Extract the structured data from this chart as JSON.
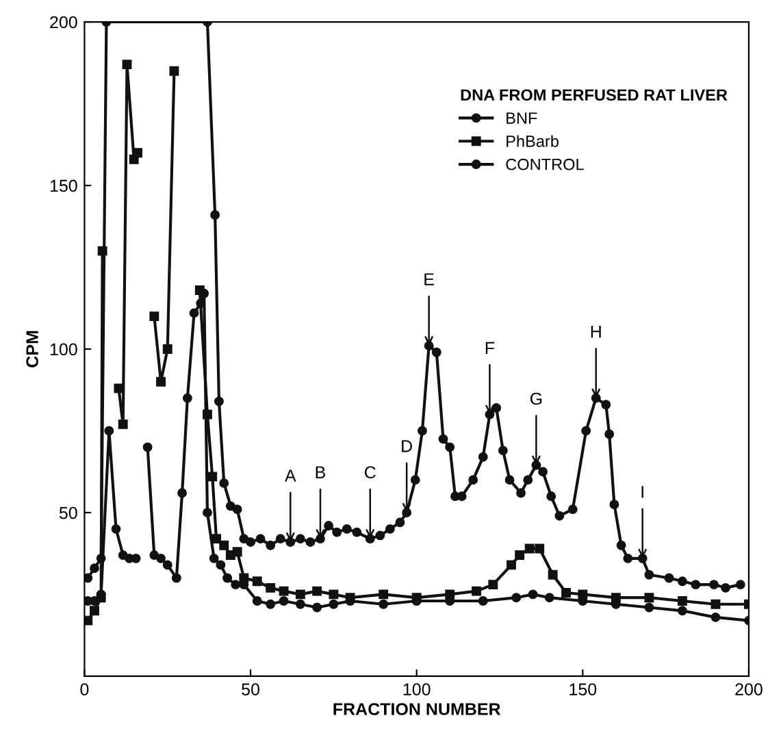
{
  "chart_data": {
    "type": "line",
    "xlabel": "FRACTION NUMBER",
    "ylabel": "CPM",
    "legend_title": "DNA FROM PERFUSED RAT LIVER",
    "legend": "top right",
    "xlim": [
      0,
      200
    ],
    "ylim": [
      0,
      200
    ],
    "xticks": [
      0,
      50,
      100,
      150,
      200
    ],
    "yticks": [
      50,
      100,
      150,
      200
    ],
    "grid": false,
    "line_style": "solid",
    "series": [
      {
        "name": "BNF",
        "color": "#111111",
        "marker": "circle",
        "x": [
          1,
          3,
          5,
          6.6,
          37,
          39.3,
          40.5,
          42,
          44,
          46,
          48,
          50,
          53,
          56,
          59,
          62,
          65,
          68,
          71,
          73.5,
          76,
          79,
          82,
          86,
          89,
          92,
          95,
          97,
          99.6,
          101.7,
          103.7,
          106,
          108,
          110,
          111.6,
          113.6,
          117,
          120,
          122,
          124,
          126,
          128,
          131.4,
          133.5,
          136,
          138,
          140.5,
          143,
          147,
          151,
          154,
          157,
          158,
          159.5,
          161.6,
          163.6,
          168,
          170,
          176,
          180,
          184,
          189.5,
          193,
          197.5
        ],
        "values": [
          30,
          33,
          36,
          200,
          200,
          141,
          84,
          59,
          52,
          51,
          42,
          41,
          42,
          40,
          42,
          41,
          42,
          41,
          42,
          46,
          44,
          45,
          44,
          42,
          43,
          45,
          47,
          50,
          60,
          75,
          101,
          99,
          72.5,
          70,
          55,
          55,
          60,
          67,
          80,
          82,
          69,
          60,
          56,
          60,
          64.5,
          62.5,
          55,
          49,
          51,
          75,
          85,
          83,
          74,
          52.5,
          40,
          36,
          36,
          31,
          30,
          29,
          28,
          28,
          27,
          28
        ]
      },
      {
        "name": "PhBarb",
        "color": "#111111",
        "marker": "square",
        "x": [
          1,
          3,
          5,
          5.4,
          7,
          10.3,
          11.6,
          12.8,
          14.9,
          16,
          17.5,
          21,
          23,
          25,
          27,
          28.5,
          33,
          34.7,
          37,
          38.5,
          39.7,
          42,
          44,
          46,
          48,
          52,
          56,
          60,
          65,
          70,
          75,
          80,
          90,
          100,
          110,
          118,
          123,
          128.5,
          131,
          134,
          137,
          141,
          145,
          150,
          160,
          170,
          180,
          190,
          200
        ],
        "values": [
          17,
          20,
          24,
          130,
          null,
          88,
          77,
          187,
          158,
          160,
          null,
          110,
          90,
          100,
          185,
          null,
          null,
          118,
          80,
          61,
          42,
          40,
          37,
          38,
          30,
          29,
          27,
          26,
          25,
          26,
          25,
          24,
          25,
          24,
          25,
          26,
          28,
          34,
          37,
          39,
          39,
          31,
          25.5,
          25,
          24,
          24,
          23,
          22,
          22
        ]
      },
      {
        "name": "CONTROL",
        "color": "#111111",
        "marker": "circle",
        "x": [
          1,
          3,
          5,
          7.4,
          9.5,
          11.6,
          13.5,
          15.5,
          17,
          19,
          21,
          23,
          25,
          27.7,
          29.4,
          31,
          33,
          35,
          36,
          37,
          39,
          41,
          43,
          45.5,
          48,
          52,
          56,
          60,
          65,
          70,
          75,
          80,
          90,
          100,
          110,
          120,
          130,
          135,
          140,
          150,
          160,
          170,
          180,
          190,
          200
        ],
        "values": [
          23,
          23,
          25,
          75,
          45,
          37,
          36,
          36,
          null,
          70,
          37,
          36,
          34,
          30,
          56,
          85,
          111,
          114,
          117,
          50,
          36,
          34,
          30,
          28,
          28,
          23,
          22,
          23,
          22,
          21,
          22,
          23,
          22,
          23,
          23,
          23,
          24,
          25,
          24,
          23,
          22,
          21,
          20,
          18,
          17
        ]
      }
    ],
    "annotations": [
      {
        "text": "A",
        "x": 62,
        "y": 41
      },
      {
        "text": "B",
        "x": 71,
        "y": 42
      },
      {
        "text": "C",
        "x": 86,
        "y": 42
      },
      {
        "text": "D",
        "x": 97,
        "y": 50
      },
      {
        "text": "E",
        "x": 103.7,
        "y": 101
      },
      {
        "text": "F",
        "x": 122,
        "y": 80
      },
      {
        "text": "G",
        "x": 136,
        "y": 64.5
      },
      {
        "text": "H",
        "x": 154,
        "y": 85
      },
      {
        "text": "I",
        "x": 168,
        "y": 36
      }
    ]
  }
}
